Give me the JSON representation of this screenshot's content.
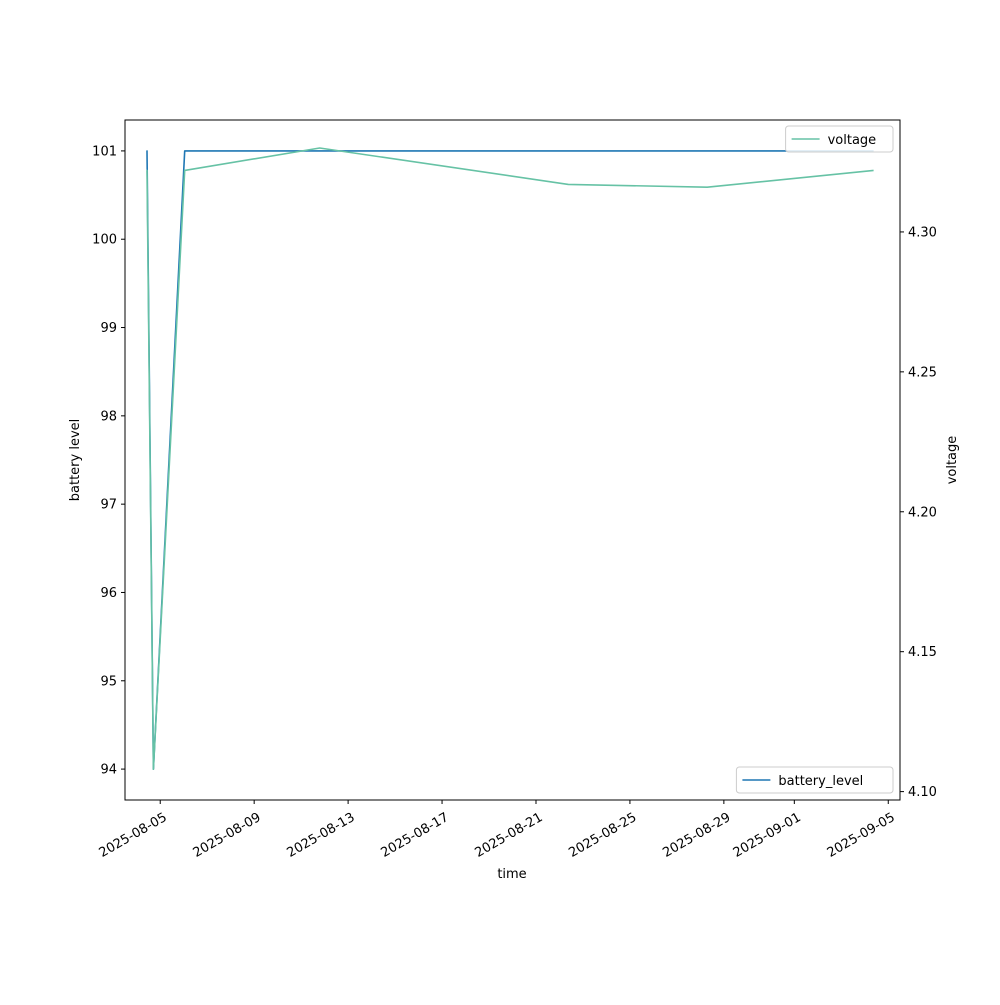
{
  "chart_data": {
    "type": "line",
    "xlabel": "time",
    "x_ticks": [
      "2025-08-05",
      "2025-08-09",
      "2025-08-13",
      "2025-08-17",
      "2025-08-21",
      "2025-08-25",
      "2025-08-29",
      "2025-09-01",
      "2025-09-05"
    ],
    "x_range": [
      "2025-08-03T12:00",
      "2025-09-05T12:00"
    ],
    "grid": false,
    "left_axis": {
      "label": "battery level",
      "range": [
        93.65,
        101.35
      ],
      "ticks": [
        94,
        95,
        96,
        97,
        98,
        99,
        100,
        101
      ]
    },
    "right_axis": {
      "label": "voltage",
      "range": [
        4.097,
        4.34
      ],
      "ticks": [
        "4.10",
        "4.15",
        "4.20",
        "4.25",
        "4.30"
      ]
    },
    "series": [
      {
        "name": "battery_level",
        "axis": "left",
        "color": "#1f77b4",
        "legend_position": "lower right",
        "x": [
          "2025-08-04T10:00",
          "2025-08-04T10:30",
          "2025-08-04T17:00",
          "2025-08-06T01:00",
          "2025-08-11T19:00",
          "2025-08-22T09:00",
          "2025-08-28T07:00",
          "2025-09-04T09:00"
        ],
        "y": [
          101,
          101,
          94,
          101,
          101,
          101,
          101,
          101
        ]
      },
      {
        "name": "voltage",
        "axis": "right",
        "color": "#66c2a5",
        "legend_position": "upper right",
        "x": [
          "2025-08-04T10:00",
          "2025-08-04T10:30",
          "2025-08-04T17:00",
          "2025-08-06T01:00",
          "2025-08-11T19:00",
          "2025-08-22T09:00",
          "2025-08-28T07:00",
          "2025-09-04T09:00"
        ],
        "y": [
          4.322,
          4.322,
          4.108,
          4.322,
          4.33,
          4.317,
          4.316,
          4.322
        ]
      }
    ]
  }
}
